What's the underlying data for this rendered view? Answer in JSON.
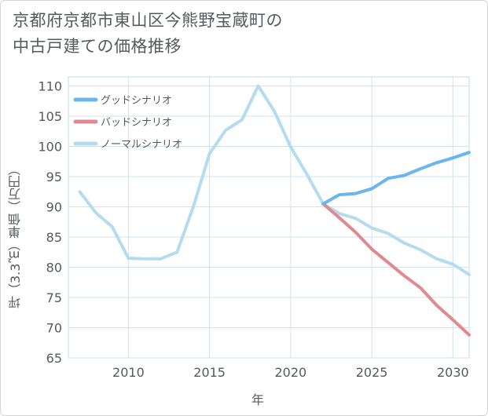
{
  "title_lines": [
    "京都府京都市東山区今熊野宝蔵町の",
    "中古戸建ての価格推移"
  ],
  "chart_data": {
    "type": "line",
    "xlabel": "年",
    "ylabel": "坪（3.3㎡）単価（万円）",
    "xlim": [
      2006.3,
      2031
    ],
    "ylim": [
      65,
      111.5
    ],
    "xticks": [
      2010,
      2015,
      2020,
      2025,
      2030
    ],
    "yticks": [
      65,
      70,
      75,
      80,
      85,
      90,
      95,
      100,
      105,
      110
    ],
    "grid": true,
    "legend_position": "top-left",
    "series": [
      {
        "name": "グッドシナリオ",
        "color": "#6bb6ee",
        "x": [
          2022,
          2023,
          2024,
          2025,
          2026,
          2027,
          2028,
          2029,
          2030,
          2031
        ],
        "y": [
          90.5,
          92.0,
          92.2,
          93.0,
          94.7,
          95.2,
          96.3,
          97.3,
          98.1,
          99.0
        ]
      },
      {
        "name": "バッドシナリオ",
        "color": "#e08a90",
        "x": [
          2022,
          2023,
          2024,
          2025,
          2026,
          2027,
          2028,
          2029,
          2030,
          2031
        ],
        "y": [
          90.5,
          88.2,
          85.8,
          83.0,
          80.8,
          78.6,
          76.6,
          73.7,
          71.3,
          68.8
        ]
      },
      {
        "name": "ノーマルシナリオ",
        "color": "#b5dcee",
        "x": [
          2007,
          2008,
          2009,
          2010,
          2011,
          2012,
          2013,
          2014,
          2015,
          2016,
          2017,
          2018,
          2019,
          2020,
          2021,
          2022,
          2023,
          2024,
          2025,
          2026,
          2027,
          2028,
          2029,
          2030,
          2031
        ],
        "y": [
          92.5,
          89.0,
          86.7,
          81.5,
          81.4,
          81.4,
          82.5,
          90.0,
          98.8,
          102.7,
          104.4,
          110.0,
          105.8,
          99.9,
          95.4,
          90.5,
          88.9,
          88.1,
          86.5,
          85.6,
          84.0,
          82.9,
          81.4,
          80.5,
          78.8
        ]
      }
    ]
  }
}
